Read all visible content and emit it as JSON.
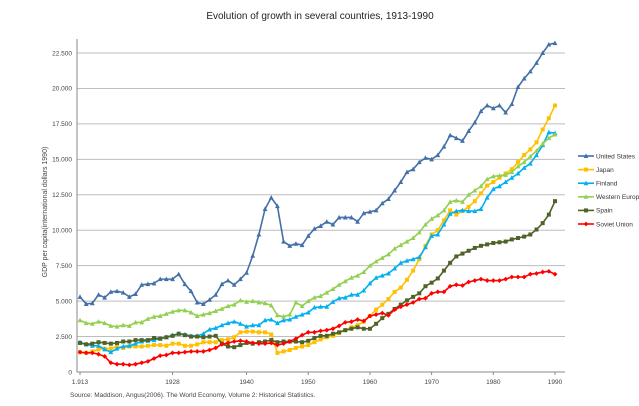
{
  "chart_data": {
    "type": "line",
    "title": "Evolution of growth in several countries, 1913-1990",
    "xlabel": "",
    "ylabel": "GDP per capita(international dollars 1990)",
    "source": "Source:  Maddison, Angus(2006). The World Economy, Volume 2: Historical Statistics.",
    "xlim": [
      1913,
      1990
    ],
    "ylim": [
      0,
      23500
    ],
    "x_ticks": [
      {
        "value": 1913,
        "label": "1.913"
      },
      {
        "value": 1928,
        "label": "1928"
      },
      {
        "value": 1940,
        "label": "1940"
      },
      {
        "value": 1950,
        "label": "1950"
      },
      {
        "value": 1960,
        "label": "1960"
      },
      {
        "value": 1970,
        "label": "1970"
      },
      {
        "value": 1980,
        "label": "1980"
      },
      {
        "value": 1990,
        "label": "1990"
      }
    ],
    "y_ticks": [
      {
        "value": 0,
        "label": "0"
      },
      {
        "value": 2500,
        "label": "2.500"
      },
      {
        "value": 5000,
        "label": "5.000"
      },
      {
        "value": 7500,
        "label": "7.500"
      },
      {
        "value": 10000,
        "label": "10.000"
      },
      {
        "value": 12500,
        "label": "12.500"
      },
      {
        "value": 15000,
        "label": "15.000"
      },
      {
        "value": 17500,
        "label": "17.500"
      },
      {
        "value": 20000,
        "label": "20.000"
      },
      {
        "value": 22500,
        "label": "22.500"
      }
    ],
    "grid": true,
    "legend_position": "right",
    "x_start": 1913,
    "series": [
      {
        "name": "United States",
        "color": "#4470A8",
        "marker": "triangle",
        "values": [
          5300,
          4800,
          4850,
          5450,
          5250,
          5650,
          5700,
          5600,
          5300,
          5500,
          6150,
          6200,
          6250,
          6550,
          6550,
          6550,
          6900,
          6200,
          5700,
          4900,
          4800,
          5100,
          5450,
          6200,
          6450,
          6150,
          6550,
          7000,
          8200,
          9700,
          11500,
          12300,
          11700,
          9200,
          8900,
          9050,
          8950,
          9600,
          10100,
          10300,
          10600,
          10400,
          10900,
          10900,
          10900,
          10600,
          11200,
          11300,
          11400,
          11900,
          12200,
          12800,
          13400,
          14100,
          14300,
          14800,
          15100,
          15000,
          15300,
          15900,
          16700,
          16500,
          16300,
          17000,
          17600,
          18400,
          18800,
          18600,
          18800,
          18300,
          18900,
          20100,
          20700,
          21200,
          21800,
          22500,
          23100,
          23200
        ]
      },
      {
        "name": "Japan",
        "color": "#FFC000",
        "marker": "square",
        "values": [
          1400,
          1350,
          1450,
          1600,
          1650,
          1650,
          1800,
          1700,
          1800,
          1800,
          1800,
          1850,
          1900,
          1900,
          1850,
          2000,
          2000,
          1850,
          1850,
          1950,
          2100,
          2100,
          2100,
          2250,
          2300,
          2450,
          2800,
          2850,
          2850,
          2800,
          2800,
          2650,
          1350,
          1450,
          1550,
          1700,
          1800,
          1900,
          2100,
          2300,
          2450,
          2550,
          2750,
          2950,
          3150,
          3300,
          3550,
          3950,
          4400,
          4750,
          5150,
          5650,
          5950,
          6500,
          7150,
          7950,
          8900,
          9700,
          10000,
          10700,
          11400,
          11100,
          11350,
          11650,
          12050,
          12600,
          13150,
          13400,
          13700,
          14000,
          14300,
          14800,
          15300,
          15700,
          16200,
          17100,
          17900,
          18800
        ]
      },
      {
        "name": "Finland",
        "color": "#00B0F0",
        "marker": "triangle",
        "values": [
          2100,
          1950,
          1850,
          1850,
          1600,
          1400,
          1650,
          1800,
          1850,
          2000,
          2150,
          2200,
          2250,
          2350,
          2450,
          2600,
          2700,
          2650,
          2550,
          2550,
          2700,
          3000,
          3100,
          3300,
          3450,
          3550,
          3400,
          3200,
          3300,
          3300,
          3650,
          3700,
          3450,
          3650,
          3700,
          3900,
          4050,
          4200,
          4550,
          4600,
          4600,
          4950,
          5200,
          5250,
          5450,
          5450,
          5750,
          6250,
          6650,
          6800,
          6950,
          7300,
          7700,
          7850,
          7950,
          8100,
          8800,
          9600,
          9700,
          10400,
          11150,
          11350,
          11400,
          11350,
          11350,
          11500,
          12300,
          12900,
          13100,
          13400,
          13700,
          14000,
          14400,
          14700,
          15300,
          16000,
          16900,
          16850
        ]
      },
      {
        "name": "Western Europe",
        "color": "#92D050",
        "marker": "triangle",
        "values": [
          3650,
          3450,
          3400,
          3550,
          3450,
          3250,
          3200,
          3300,
          3250,
          3500,
          3500,
          3750,
          3900,
          3950,
          4100,
          4250,
          4350,
          4350,
          4200,
          3950,
          4050,
          4150,
          4300,
          4450,
          4650,
          4750,
          5050,
          4950,
          5000,
          4900,
          4850,
          4700,
          4000,
          3900,
          4050,
          4900,
          4650,
          5000,
          5250,
          5350,
          5600,
          5850,
          6150,
          6400,
          6650,
          6800,
          7050,
          7500,
          7800,
          8050,
          8300,
          8700,
          8950,
          9200,
          9450,
          9850,
          10400,
          10800,
          11050,
          11400,
          12000,
          12100,
          12000,
          12500,
          12800,
          13100,
          13600,
          13800,
          13850,
          13900,
          14100,
          14500,
          14800,
          15200,
          15600,
          16100,
          16500,
          16750
        ]
      },
      {
        "name": "Spain",
        "color": "#4F6228",
        "marker": "square",
        "values": [
          2050,
          1950,
          2000,
          2100,
          2050,
          2000,
          2050,
          2150,
          2150,
          2250,
          2250,
          2250,
          2400,
          2350,
          2450,
          2550,
          2700,
          2600,
          2500,
          2500,
          2450,
          2500,
          2550,
          2000,
          1800,
          1750,
          1900,
          2050,
          2000,
          2100,
          2150,
          2250,
          2100,
          2150,
          2150,
          2150,
          2100,
          2200,
          2400,
          2550,
          2550,
          2700,
          2800,
          2950,
          3050,
          3150,
          3050,
          3050,
          3400,
          3800,
          4100,
          4450,
          4750,
          5050,
          5300,
          5550,
          6050,
          6300,
          6600,
          7150,
          7700,
          8150,
          8350,
          8550,
          8750,
          8900,
          9000,
          9100,
          9150,
          9200,
          9350,
          9450,
          9550,
          9700,
          10050,
          10500,
          11100,
          12050
        ]
      },
      {
        "name": "Soviet Union",
        "color": "#FF0000",
        "marker": "diamond",
        "values": [
          1400,
          1350,
          1350,
          1250,
          1100,
          650,
          550,
          550,
          500,
          550,
          650,
          750,
          950,
          1150,
          1200,
          1350,
          1350,
          1400,
          1450,
          1450,
          1450,
          1550,
          1700,
          1950,
          2050,
          2150,
          2200,
          2150,
          2050,
          2000,
          2000,
          2050,
          1900,
          2000,
          2150,
          2350,
          2600,
          2800,
          2800,
          2900,
          2950,
          3050,
          3250,
          3500,
          3550,
          3700,
          3600,
          3950,
          4050,
          4150,
          4000,
          4400,
          4600,
          4750,
          4900,
          5150,
          5200,
          5550,
          5650,
          5650,
          6050,
          6150,
          6100,
          6350,
          6450,
          6550,
          6450,
          6450,
          6450,
          6550,
          6700,
          6700,
          6700,
          6900,
          6950,
          7050,
          7100,
          6900
        ]
      }
    ]
  }
}
